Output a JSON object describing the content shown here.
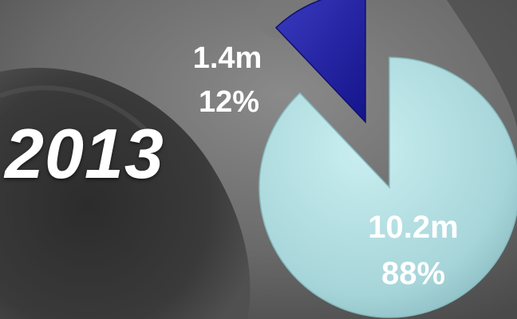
{
  "year": "2013",
  "colors": {
    "slice_small": "#2020a6",
    "slice_large": "#a6d5d9",
    "background": "#5a5a5a"
  },
  "chart_data": {
    "type": "pie",
    "title": "",
    "exploded": true,
    "slices": [
      {
        "value": 1.4,
        "value_label": "1.4m",
        "percent_label": "12%",
        "percent": 12,
        "color": "#2020a6"
      },
      {
        "value": 10.2,
        "value_label": "10.2m",
        "percent_label": "88%",
        "percent": 88,
        "color": "#a6d5d9"
      }
    ]
  }
}
